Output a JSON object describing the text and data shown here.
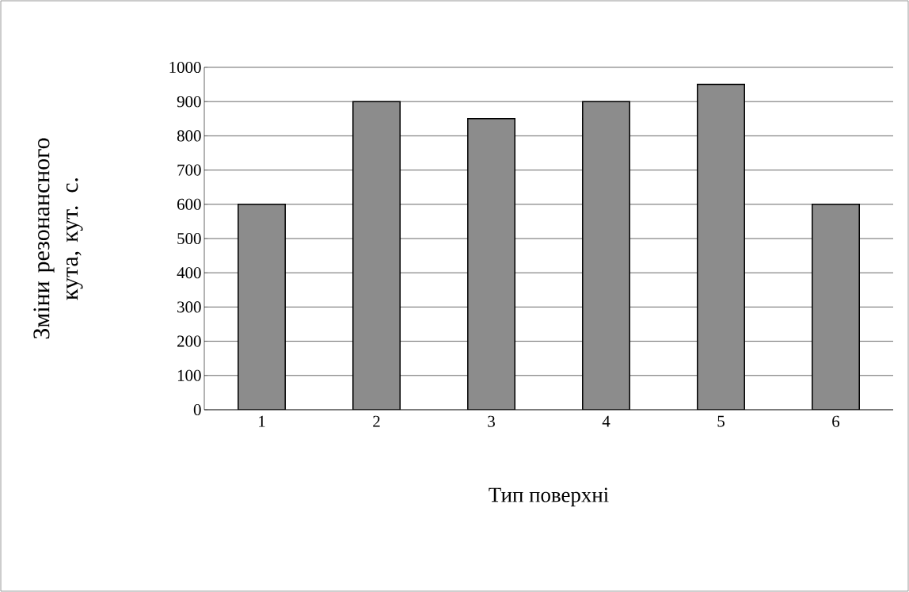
{
  "chart_data": {
    "type": "bar",
    "xlabel": "Тип поверхні",
    "ylabel": "Зміни резонансного кута, кут. с.",
    "categories": [
      "1",
      "2",
      "3",
      "4",
      "5",
      "6"
    ],
    "values": [
      600,
      900,
      850,
      900,
      950,
      600
    ],
    "color": "#8c8c8c",
    "ylim": [
      0,
      1000
    ],
    "yticks": [
      0,
      100,
      200,
      300,
      400,
      500,
      600,
      700,
      800,
      900,
      1000
    ],
    "grid": "y"
  }
}
